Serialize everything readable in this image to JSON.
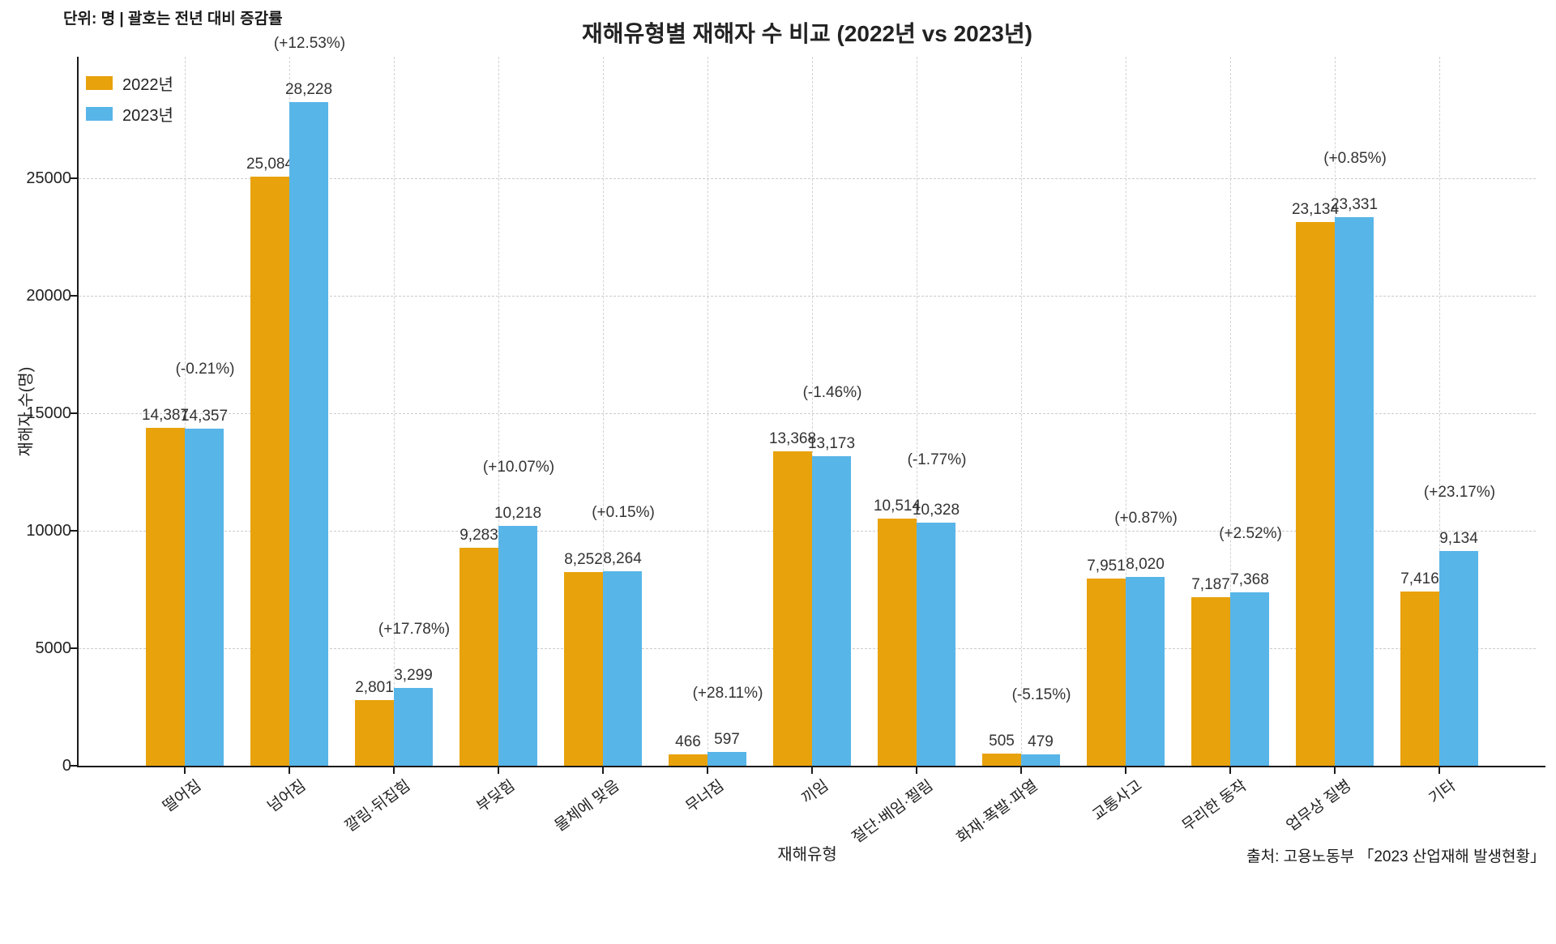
{
  "header": {
    "note": "단위: 명  |  괄호는 전년 대비 증감률",
    "title": "재해유형별 재해자 수 비교 (2022년 vs 2023년)"
  },
  "legend": {
    "items": [
      {
        "label": "2022년",
        "color": "#E8A20C"
      },
      {
        "label": "2023년",
        "color": "#58B5E8"
      }
    ]
  },
  "axes": {
    "y_title": "재해자 수(명)",
    "x_title": "재해유형",
    "y_tick_labels": [
      "0",
      "5000",
      "10000",
      "15000",
      "20000",
      "25000"
    ]
  },
  "footer": {
    "source": "출처: 고용노동부 「2023 산업재해 발생현황」"
  },
  "chart_data": {
    "type": "bar",
    "title": "재해유형별 재해자 수 비교 (2022년 vs 2023년)",
    "xlabel": "재해유형",
    "ylabel": "재해자 수(명)",
    "unit_note": "단위: 명  |  괄호는 전년 대비 증감률",
    "source": "출처: 고용노동부 「2023 산업재해 발생현황」",
    "categories": [
      "떨어짐",
      "넘어짐",
      "깔림·뒤집힘",
      "부딪힘",
      "물체에 맞음",
      "무너짐",
      "끼임",
      "절단·베임·찔림",
      "화재·폭발·파열",
      "교통사고",
      "무리한 동작",
      "업무상 질병",
      "기타"
    ],
    "series": [
      {
        "name": "2022년",
        "color": "#E8A20C",
        "values": [
          14387,
          25084,
          2801,
          9283,
          8252,
          466,
          13368,
          10514,
          505,
          7951,
          7187,
          23134,
          7416
        ],
        "value_labels": [
          "14,387",
          "25,084",
          "2,801",
          "9,283",
          "8,252",
          "466",
          "13,368",
          "10,514",
          "505",
          "7,951",
          "7,187",
          "23,134",
          "7,416"
        ]
      },
      {
        "name": "2023년",
        "color": "#58B5E8",
        "values": [
          14357,
          28228,
          3299,
          10218,
          8264,
          597,
          13173,
          10328,
          479,
          8020,
          7368,
          23331,
          9134
        ],
        "value_labels": [
          "14,357",
          "28,228",
          "3,299",
          "10,218",
          "8,264",
          "597",
          "13,173",
          "10,328",
          "479",
          "8,020",
          "7,368",
          "23,331",
          "9,134"
        ]
      }
    ],
    "pct_change_labels": [
      "(-0.21%)",
      "(+12.53%)",
      "(+17.78%)",
      "(+10.07%)",
      "(+0.15%)",
      "(+28.11%)",
      "(-1.46%)",
      "(-1.77%)",
      "(-5.15%)",
      "(+0.87%)",
      "(+2.52%)",
      "(+0.85%)",
      "(+23.17%)"
    ],
    "y_ticks": [
      0,
      5000,
      10000,
      15000,
      20000,
      25000
    ],
    "ylim": [
      0,
      29640
    ],
    "grid": true,
    "legend_position": "upper left"
  }
}
